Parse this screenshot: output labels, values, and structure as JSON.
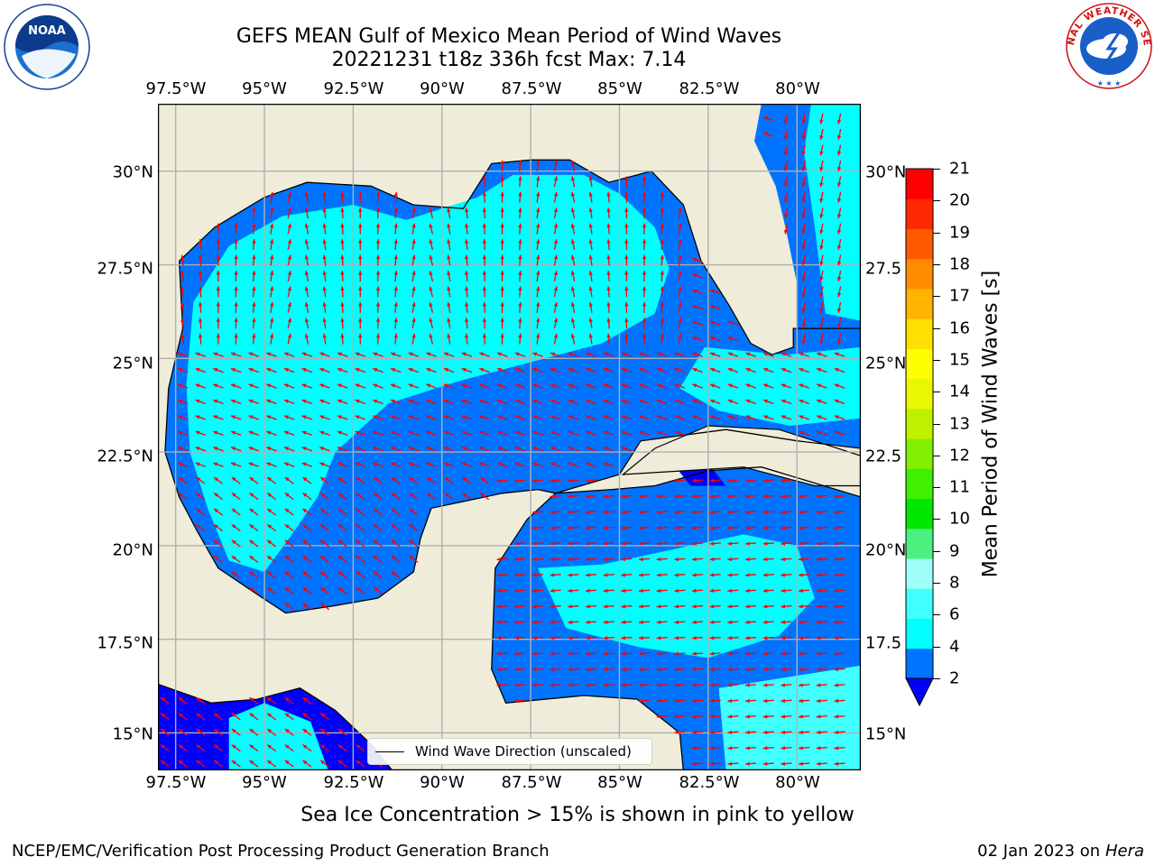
{
  "title_line1": "GEFS MEAN Gulf of Mexico Mean Period of Wind Waves",
  "title_line2": "20221231 t18z 336h fcst   Max: 7.14",
  "lon_labels": [
    "97.5°W",
    "95°W",
    "92.5°W",
    "90°W",
    "87.5°W",
    "85°W",
    "82.5°W",
    "80°W"
  ],
  "lat_labels_left": [
    "30°N",
    "27.5°N",
    "25°N",
    "22.5°N",
    "20°N",
    "17.5°N",
    "15°N"
  ],
  "lat_labels_right": [
    "30°N",
    "27.5",
    "25°N",
    "22.5",
    "20°N",
    "17.5",
    "15°N"
  ],
  "legend": {
    "label": "Wind Wave Direction (unscaled)"
  },
  "colorbar": {
    "label": "Mean Period of Wind Waves [s]",
    "ticks": [
      "2",
      "4",
      "6",
      "8",
      "9",
      "10",
      "11",
      "12",
      "13",
      "14",
      "15",
      "16",
      "17",
      "18",
      "19",
      "20",
      "21"
    ],
    "colors": [
      "#0073ff",
      "#00ffff",
      "#40ffff",
      "#a0fff8",
      "#4cf080",
      "#00e800",
      "#40f000",
      "#80f000",
      "#c0f000",
      "#e8f800",
      "#ffff00",
      "#ffe000",
      "#ffb400",
      "#ff8c00",
      "#ff5a00",
      "#ff2800",
      "#ff0000"
    ],
    "under_color": "#0000ff"
  },
  "colors": {
    "land": "#efedda",
    "coastline": "#000000",
    "arrow": "#ff0000",
    "grid": "#b0b0b0"
  },
  "subtitle": "Sea Ice Concentration > 15% is shown in pink to yellow",
  "footer_left": "NCEP/EMC/Verification Post Processing Product Generation Branch",
  "footer_date": "02 Jan 2023 on ",
  "footer_host": "Hera",
  "logos": {
    "left": "NOAA",
    "right_text": "NATIONAL WEATHER SERVICE"
  }
}
